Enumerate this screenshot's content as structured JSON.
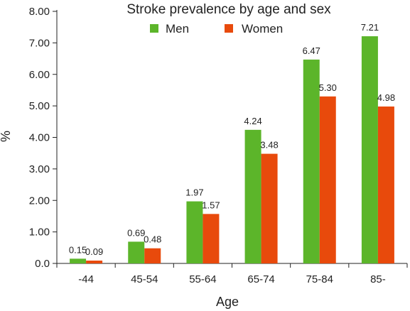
{
  "chart_data": {
    "type": "bar",
    "title": "Stroke prevalence by age and sex",
    "xlabel": "Age",
    "ylabel": "%",
    "categories": [
      "-44",
      "45-54",
      "55-64",
      "65-74",
      "75-84",
      "85-"
    ],
    "series": [
      {
        "name": "Men",
        "color": "#5cb52a",
        "values": [
          0.15,
          0.69,
          1.97,
          4.24,
          6.47,
          7.21
        ],
        "labels": [
          "0.15",
          "0.69",
          "1.97",
          "4.24",
          "6.47",
          "7.21"
        ]
      },
      {
        "name": "Women",
        "color": "#e84a0c",
        "values": [
          0.09,
          0.48,
          1.57,
          3.48,
          5.3,
          4.98
        ],
        "labels": [
          "0.09",
          "0.48",
          "1.57",
          "3.48",
          "5.30",
          "4.98"
        ]
      }
    ],
    "ylim": [
      0,
      8
    ],
    "yticks": [
      "0.0",
      "1.00",
      "2.00",
      "3.00",
      "4.00",
      "5.00",
      "6.00",
      "7.00",
      "8.00"
    ],
    "grid": false,
    "legend_position": "top-center"
  }
}
